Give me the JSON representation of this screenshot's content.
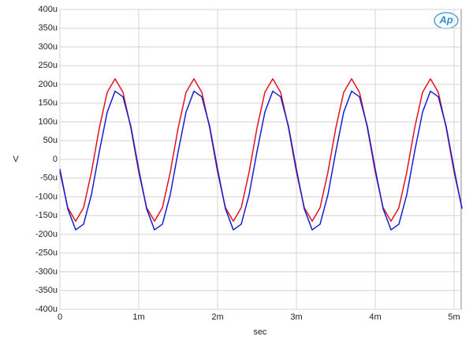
{
  "chart_data": {
    "type": "line",
    "x_label": "sec",
    "y_label": "V",
    "logo": "Ap",
    "x": [
      0,
      0.0001,
      0.0002,
      0.0003,
      0.0004,
      0.0005,
      0.0006,
      0.0007,
      0.0008,
      0.0009,
      0.001,
      0.0011,
      0.0012,
      0.0013,
      0.0014,
      0.0015,
      0.0016,
      0.0017,
      0.0018,
      0.0019,
      0.002,
      0.0021,
      0.0022,
      0.0023,
      0.0024,
      0.0025,
      0.0026,
      0.0027,
      0.0028,
      0.0029,
      0.003,
      0.0031,
      0.0032,
      0.0033,
      0.0034,
      0.0035,
      0.0036,
      0.0037,
      0.0038,
      0.0039,
      0.004,
      0.0041,
      0.0042,
      0.0043,
      0.0044,
      0.0045,
      0.0046,
      0.0047,
      0.0048,
      0.0049,
      0.005,
      0.0051
    ],
    "series": [
      {
        "color": "#e0141e",
        "values": [
          -3.4e-05,
          -0.000129,
          -0.000165,
          -0.000129,
          -3.4e-05,
          8.4e-05,
          0.000179,
          0.000215,
          0.000179,
          8.4e-05,
          -3.4e-05,
          -0.000129,
          -0.000165,
          -0.000129,
          -3.4e-05,
          8.4e-05,
          0.000179,
          0.000215,
          0.000179,
          8.4e-05,
          -3.4e-05,
          -0.000129,
          -0.000165,
          -0.000129,
          -3.4e-05,
          8.4e-05,
          0.000179,
          0.000215,
          0.000179,
          8.4e-05,
          -3.4e-05,
          -0.000129,
          -0.000165,
          -0.000129,
          -3.4e-05,
          8.4e-05,
          0.000179,
          0.000215,
          0.000179,
          8.4e-05,
          -3.4e-05,
          -0.000129,
          -0.000165,
          -0.000129,
          -3.4e-05,
          8.4e-05,
          0.000179,
          0.000215,
          0.000179,
          8.4e-05,
          -3.4e-05,
          -0.000129
        ]
      },
      {
        "color": "#1420d0",
        "values": [
          -2.6e-05,
          -0.000132,
          -0.000188,
          -0.000173,
          -9.4e-05,
          2.1e-05,
          0.000126,
          0.000182,
          0.000167,
          8.8e-05,
          -2.6e-05,
          -0.000132,
          -0.000188,
          -0.000173,
          -9.4e-05,
          2.1e-05,
          0.000126,
          0.000182,
          0.000167,
          8.8e-05,
          -2.6e-05,
          -0.000132,
          -0.000188,
          -0.000173,
          -9.4e-05,
          2.1e-05,
          0.000126,
          0.000182,
          0.000167,
          8.8e-05,
          -2.6e-05,
          -0.000132,
          -0.000188,
          -0.000173,
          -9.4e-05,
          2.1e-05,
          0.000126,
          0.000182,
          0.000167,
          8.8e-05,
          -2.6e-05,
          -0.000132,
          -0.000188,
          -0.000173,
          -9.4e-05,
          2.1e-05,
          0.000126,
          0.000182,
          0.000167,
          8.8e-05,
          -2.6e-05,
          -0.000132
        ]
      }
    ],
    "xlim": [
      0,
      0.00509
    ],
    "xticks": [
      0,
      {
        "value": 0.001,
        "label": "1m"
      },
      {
        "value": 0.002,
        "label": "2m"
      },
      {
        "value": 0.003,
        "label": "3m"
      },
      {
        "value": 0.004,
        "label": "4m"
      },
      {
        "value": 0.005,
        "label": "5m"
      }
    ],
    "ylim": [
      -0.0004,
      0.0004
    ],
    "yticks": [
      {
        "value": 0.0004,
        "label": "400u"
      },
      {
        "value": 0.00035,
        "label": "350u"
      },
      {
        "value": 0.0003,
        "label": "300u"
      },
      {
        "value": 0.00025,
        "label": "250u"
      },
      {
        "value": 0.0002,
        "label": "200u"
      },
      {
        "value": 0.00015,
        "label": "150u"
      },
      {
        "value": 0.0001,
        "label": "100u"
      },
      {
        "value": 5e-05,
        "label": "50u"
      },
      0,
      {
        "value": -5e-05,
        "label": "-50u"
      },
      {
        "value": -0.0001,
        "label": "-100u"
      },
      {
        "value": -0.00015,
        "label": "-150u"
      },
      {
        "value": -0.0002,
        "label": "-200u"
      },
      {
        "value": -0.00025,
        "label": "-250u"
      },
      {
        "value": -0.0003,
        "label": "-300u"
      },
      {
        "value": -0.00035,
        "label": "-350u"
      },
      {
        "value": -0.0004,
        "label": "-400u"
      }
    ],
    "grid": true
  }
}
